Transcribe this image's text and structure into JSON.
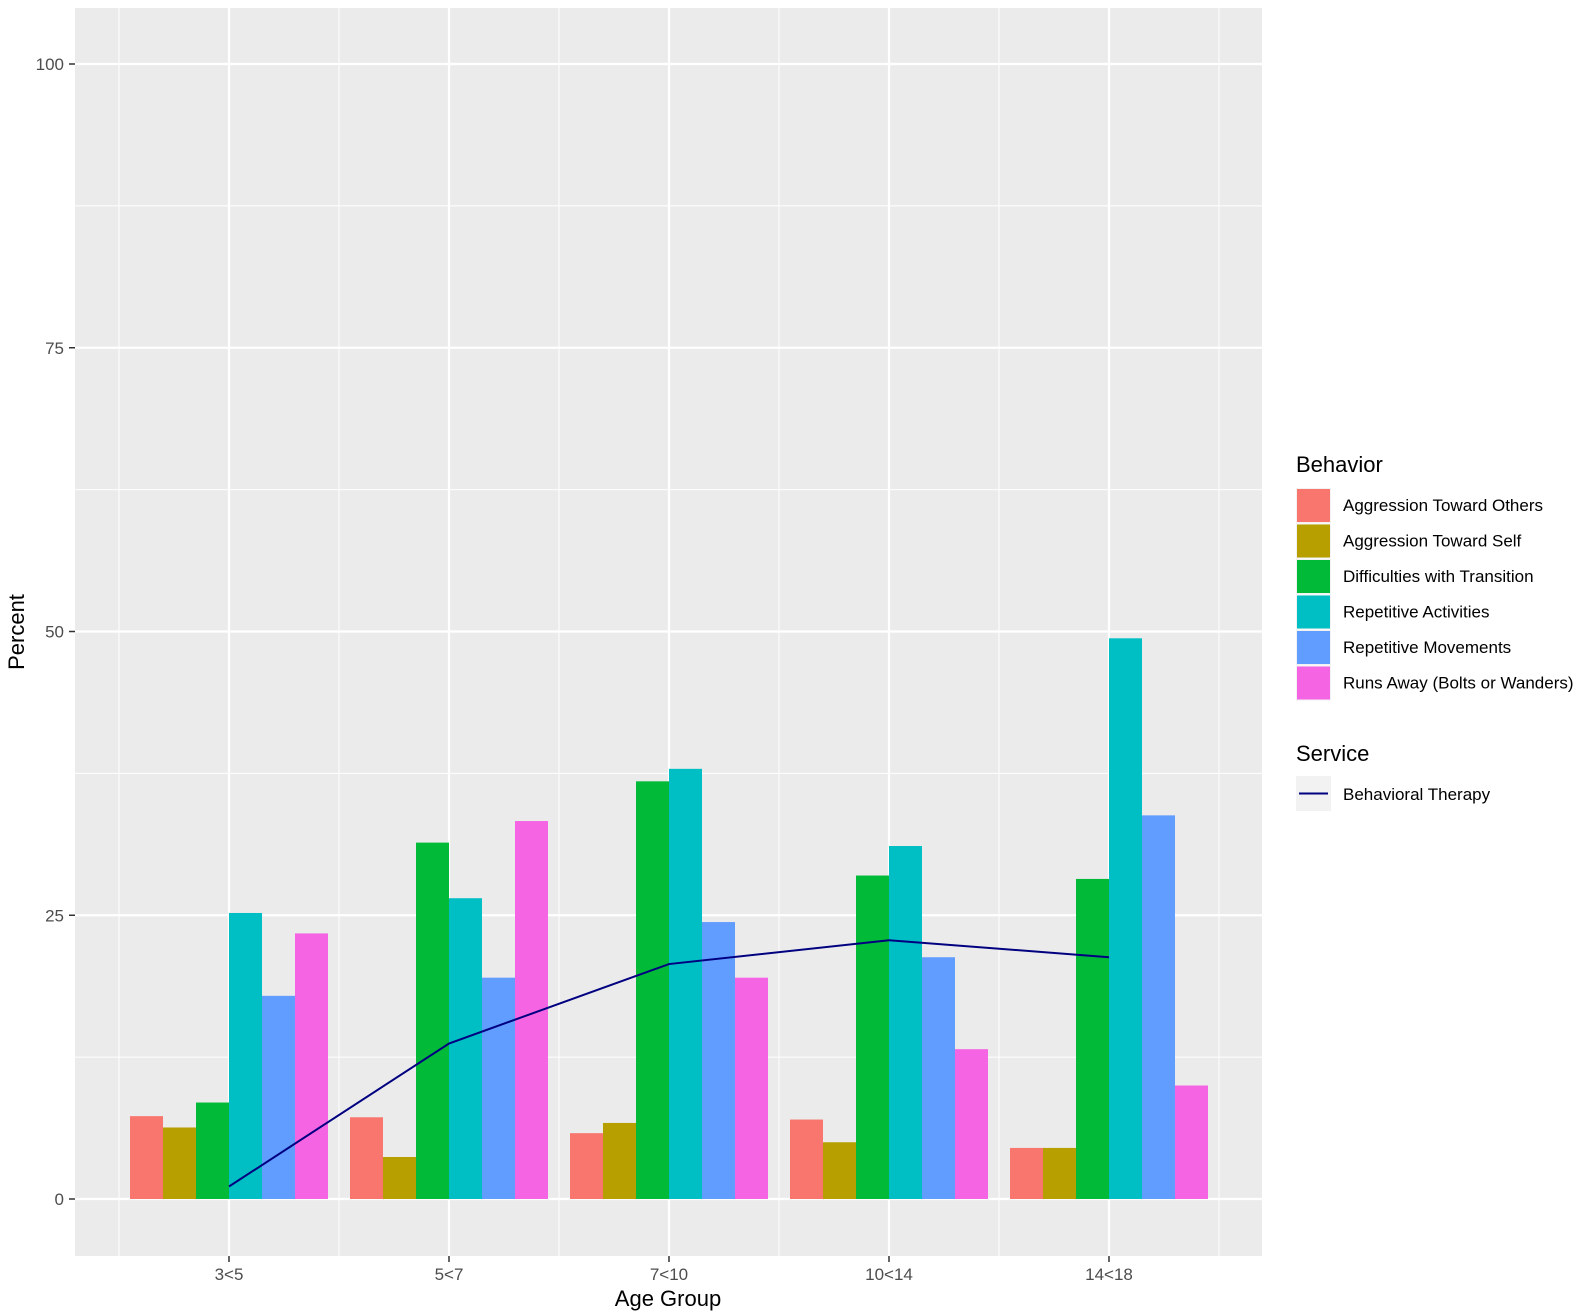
{
  "chart_data": {
    "type": "bar",
    "xlabel": "Age Group",
    "ylabel": "Percent",
    "ylim": [
      -5,
      105
    ],
    "yticks": [
      0,
      25,
      50,
      75,
      100
    ],
    "grid": true,
    "legend_placement": "right",
    "categories": [
      "3<5",
      "5<7",
      "7<10",
      "10<14",
      "14<18"
    ],
    "series": [
      {
        "name": "Aggression Toward Others",
        "color": "#F8766D",
        "values": [
          7.3,
          7.2,
          5.8,
          7.0,
          4.5
        ]
      },
      {
        "name": "Aggression Toward Self",
        "color": "#B79F00",
        "values": [
          6.3,
          3.7,
          6.7,
          5.0,
          4.5
        ]
      },
      {
        "name": "Difficulties with Transition",
        "color": "#00BA38",
        "values": [
          8.5,
          31.4,
          36.8,
          28.5,
          28.2
        ]
      },
      {
        "name": "Repetitive Activities",
        "color": "#00BFC4",
        "values": [
          25.2,
          26.5,
          37.9,
          31.1,
          49.4
        ]
      },
      {
        "name": "Repetitive Movements",
        "color": "#619CFF",
        "values": [
          17.9,
          19.5,
          24.4,
          21.3,
          33.8
        ]
      },
      {
        "name": "Runs Away (Bolts or Wanders)",
        "color": "#F564E3",
        "values": [
          23.4,
          33.3,
          19.5,
          13.2,
          10.0
        ]
      }
    ],
    "line_series": {
      "name": "Behavioral Therapy",
      "color": "#000080",
      "values": [
        1.1,
        13.7,
        20.7,
        22.8,
        21.3
      ]
    },
    "legend": {
      "bar_title": "Behavior",
      "line_title": "Service"
    }
  }
}
